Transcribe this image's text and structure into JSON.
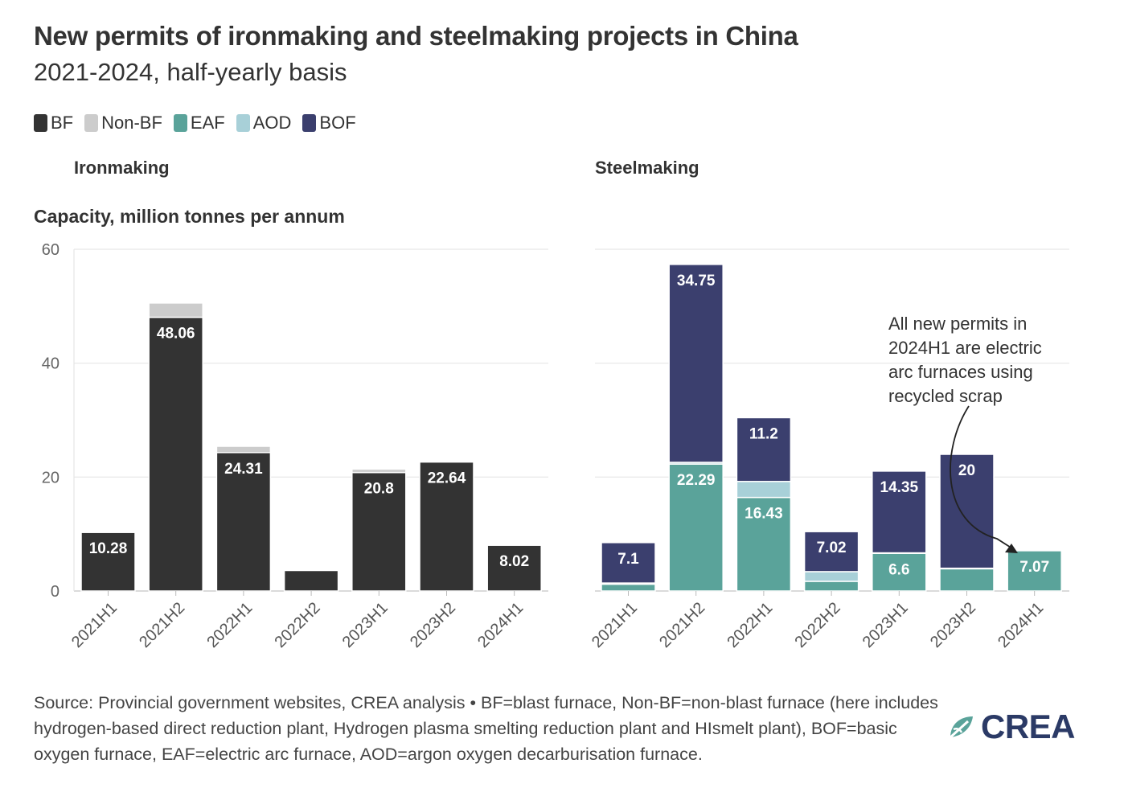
{
  "title": "New permits of ironmaking and steelmaking projects in China",
  "subtitle": "2021-2024, half-yearly basis",
  "legend": [
    {
      "label": "BF",
      "color": "#333333"
    },
    {
      "label": "Non-BF",
      "color": "#cccccc"
    },
    {
      "label": "EAF",
      "color": "#5aa39a"
    },
    {
      "label": "AOD",
      "color": "#a8d0d8"
    },
    {
      "label": "BOF",
      "color": "#3b3f6e"
    }
  ],
  "yaxis_title": "Capacity, million tonnes per annum",
  "annotation": [
    "All new permits in",
    "2024H1 are electric",
    "arc furnaces using",
    "recycled scrap"
  ],
  "footer": "Source: Provincial government websites, CREA analysis • BF=blast furnace, Non-BF=non-blast furnace (here includes hydrogen-based direct reduction plant, Hydrogen plasma smelting reduction plant and HIsmelt plant), BOF=basic oxygen furnace, EAF=electric arc furnace, AOD=argon oxygen decarburisation furnace.",
  "logo_text": "CREA",
  "chart_data": [
    {
      "type": "bar",
      "stacked": true,
      "title": "Ironmaking",
      "ylabel": "Capacity, million tonnes per annum",
      "ylim": [
        0,
        60
      ],
      "yticks": [
        0,
        20,
        40,
        60
      ],
      "categories": [
        "2021H1",
        "2021H2",
        "2022H1",
        "2022H2",
        "2023H1",
        "2023H2",
        "2024H1"
      ],
      "series": [
        {
          "name": "BF",
          "color": "#333333",
          "values": [
            10.28,
            48.06,
            24.31,
            3.6,
            20.8,
            22.64,
            8.02
          ]
        },
        {
          "name": "Non-BF",
          "color": "#cccccc",
          "values": [
            0,
            2.5,
            1.1,
            0,
            0.6,
            0,
            0
          ]
        }
      ],
      "labels": [
        "10.28",
        "48.06",
        "24.31",
        "",
        "20.8",
        "22.64",
        "8.02"
      ]
    },
    {
      "type": "bar",
      "stacked": true,
      "title": "Steelmaking",
      "ylim": [
        0,
        60
      ],
      "yticks": [
        0,
        20,
        40,
        60
      ],
      "categories": [
        "2021H1",
        "2021H2",
        "2022H1",
        "2022H2",
        "2023H1",
        "2023H2",
        "2024H1"
      ],
      "series": [
        {
          "name": "EAF",
          "color": "#5aa39a",
          "values": [
            1.2,
            22.29,
            16.43,
            1.7,
            6.6,
            3.9,
            7.07
          ]
        },
        {
          "name": "AOD",
          "color": "#a8d0d8",
          "values": [
            0.2,
            0.3,
            2.8,
            1.7,
            0.1,
            0.1,
            0
          ]
        },
        {
          "name": "BOF",
          "color": "#3b3f6e",
          "values": [
            7.1,
            34.75,
            11.2,
            7.02,
            14.35,
            20,
            0
          ]
        }
      ],
      "labels": {
        "EAF": [
          "",
          "22.29",
          "16.43",
          "",
          "6.6",
          "",
          "7.07"
        ],
        "BOF": [
          "7.1",
          "34.75",
          "11.2",
          "7.02",
          "14.35",
          "20",
          ""
        ]
      }
    }
  ]
}
